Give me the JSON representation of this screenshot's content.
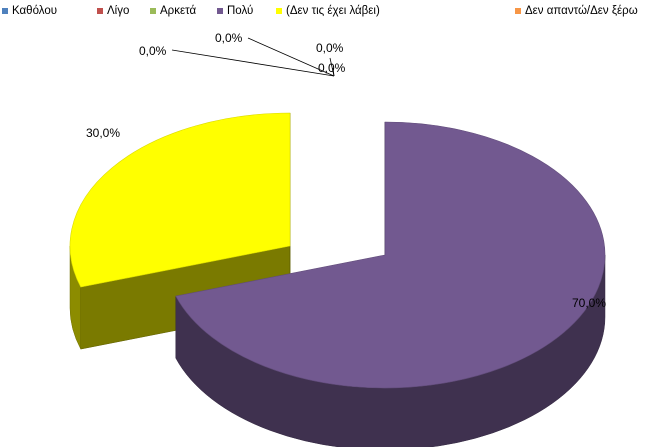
{
  "chart_data": {
    "type": "pie",
    "categories": [
      "Καθόλου",
      "Λίγο",
      "Αρκετά",
      "Πολύ",
      "(Δεν τις έχει λάβει)",
      "Δεν απαντώ/Δεν ξέρω"
    ],
    "values": [
      0.0,
      0.0,
      0.0,
      70.0,
      30.0,
      0.0
    ],
    "data_labels": [
      "0,0%",
      "0,0%",
      "0,0%",
      "70,0%",
      "30,0%",
      "0,0%"
    ],
    "colors": [
      "#4f81bd",
      "#c0504d",
      "#9bbb59",
      "#725990",
      "#ffff00",
      "#f79646"
    ],
    "legend_position": "top",
    "style": "3d-exploded"
  }
}
